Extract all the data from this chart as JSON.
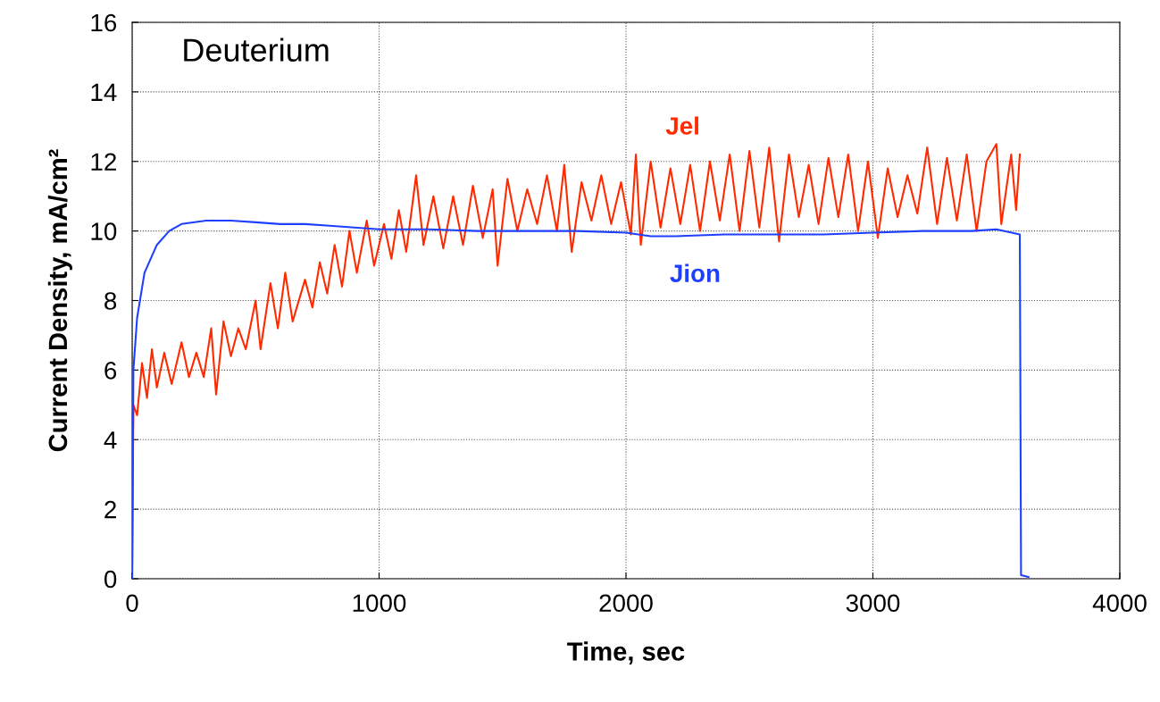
{
  "chart_data": {
    "type": "line",
    "xlabel": "Time, sec",
    "ylabel": "Current Density, mA/cm²",
    "annotations": [
      "Deuterium"
    ],
    "xlim": [
      0,
      4000
    ],
    "ylim": [
      0,
      16
    ],
    "xticks": [
      0,
      1000,
      2000,
      3000,
      4000
    ],
    "yticks": [
      0,
      2,
      4,
      6,
      8,
      10,
      12,
      14,
      16
    ],
    "grid": true,
    "marker": "none",
    "line_style": "solid",
    "series": [
      {
        "name": "Jel",
        "color": "#ff2a00",
        "x": [
          0,
          5,
          20,
          40,
          60,
          80,
          100,
          130,
          160,
          200,
          230,
          260,
          290,
          320,
          340,
          370,
          400,
          430,
          460,
          500,
          520,
          560,
          590,
          620,
          650,
          700,
          730,
          760,
          790,
          820,
          850,
          880,
          910,
          950,
          980,
          1020,
          1050,
          1080,
          1110,
          1150,
          1180,
          1220,
          1260,
          1300,
          1340,
          1380,
          1420,
          1460,
          1480,
          1520,
          1560,
          1600,
          1640,
          1680,
          1720,
          1750,
          1780,
          1820,
          1860,
          1900,
          1940,
          1980,
          2020,
          2040,
          2060,
          2100,
          2140,
          2180,
          2220,
          2260,
          2300,
          2340,
          2380,
          2420,
          2460,
          2500,
          2540,
          2580,
          2620,
          2660,
          2700,
          2740,
          2780,
          2820,
          2860,
          2900,
          2940,
          2980,
          3020,
          3060,
          3100,
          3140,
          3180,
          3220,
          3260,
          3300,
          3340,
          3380,
          3420,
          3460,
          3500,
          3520,
          3560,
          3580,
          3595
        ],
        "values": [
          0,
          5.0,
          4.7,
          6.2,
          5.2,
          6.6,
          5.5,
          6.5,
          5.6,
          6.8,
          5.8,
          6.5,
          5.8,
          7.2,
          5.3,
          7.4,
          6.4,
          7.2,
          6.6,
          8.0,
          6.6,
          8.5,
          7.2,
          8.8,
          7.4,
          8.6,
          7.8,
          9.1,
          8.2,
          9.6,
          8.4,
          10.0,
          8.8,
          10.3,
          9.0,
          10.2,
          9.2,
          10.6,
          9.4,
          11.6,
          9.6,
          11.0,
          9.5,
          11.0,
          9.6,
          11.3,
          9.8,
          11.2,
          9.0,
          11.5,
          10.0,
          11.2,
          10.2,
          11.6,
          10.0,
          11.9,
          9.4,
          11.4,
          10.3,
          11.6,
          10.2,
          11.4,
          9.9,
          12.2,
          9.6,
          12.0,
          10.1,
          11.8,
          10.2,
          11.9,
          10.0,
          12.0,
          10.3,
          12.2,
          10.0,
          12.3,
          10.1,
          12.4,
          9.7,
          12.2,
          10.4,
          11.9,
          10.2,
          12.1,
          10.4,
          12.2,
          10.0,
          12.0,
          9.8,
          11.8,
          10.4,
          11.6,
          10.5,
          12.4,
          10.2,
          12.1,
          10.3,
          12.2,
          10.0,
          12.0,
          12.5,
          10.2,
          12.2,
          10.6,
          12.2
        ]
      },
      {
        "name": "Jion",
        "color": "#1f3fff",
        "x": [
          0,
          5,
          20,
          50,
          100,
          150,
          200,
          300,
          400,
          500,
          600,
          700,
          800,
          900,
          1000,
          1200,
          1400,
          1600,
          1800,
          2000,
          2100,
          2200,
          2400,
          2600,
          2800,
          3000,
          3200,
          3400,
          3500,
          3595,
          3600,
          3630
        ],
        "values": [
          0,
          6.0,
          7.5,
          8.8,
          9.6,
          10.0,
          10.2,
          10.3,
          10.3,
          10.25,
          10.2,
          10.2,
          10.15,
          10.1,
          10.05,
          10.05,
          10.0,
          10.0,
          10.0,
          9.95,
          9.85,
          9.85,
          9.9,
          9.9,
          9.9,
          9.95,
          10.0,
          10.0,
          10.05,
          9.9,
          0.1,
          0.05
        ]
      }
    ]
  }
}
